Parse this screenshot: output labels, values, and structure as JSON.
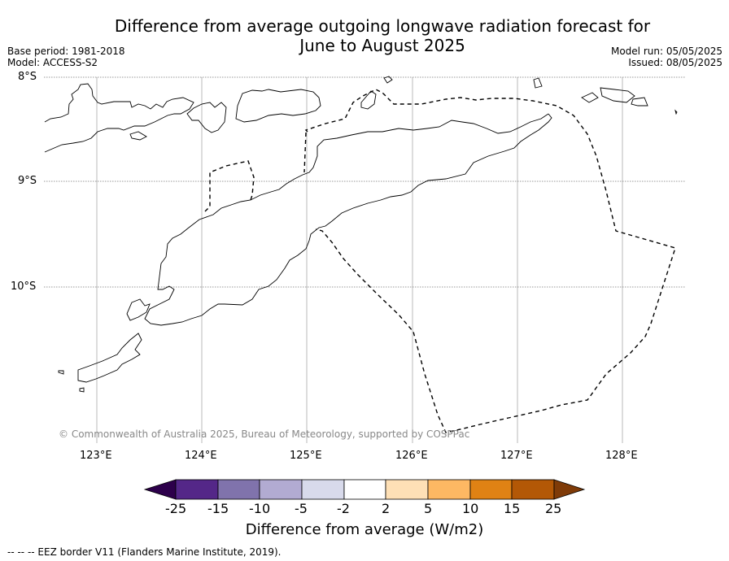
{
  "title_line1": "Difference from average outgoing longwave radiation forecast for",
  "title_line2": "June to August 2025",
  "meta_left": [
    "Base period: 1981-2018",
    "Model: ACCESS-S2"
  ],
  "meta_right": [
    "Model run: 05/05/2025",
    "Issued: 08/05/2025"
  ],
  "map": {
    "lat_ticks": [
      "8°S",
      "9°S",
      "10°S"
    ],
    "lon_ticks": [
      "123°E",
      "124°E",
      "125°E",
      "126°E",
      "127°E",
      "128°E"
    ],
    "gridlines": true,
    "copyright": "© Commonwealth of Australia 2025, Bureau of Meteorology, supported by COSPPac"
  },
  "colorbar": {
    "ticks": [
      "-25",
      "-15",
      "-10",
      "-5",
      "-2",
      "2",
      "5",
      "10",
      "15",
      "25"
    ],
    "colors": [
      "#2d004b",
      "#542788",
      "#8073ac",
      "#b2abd2",
      "#d8daeb",
      "#ffffff",
      "#fee0b6",
      "#fdb863",
      "#e08214",
      "#b35806",
      "#7f3b08"
    ],
    "title": "Difference from average (W/m2)"
  },
  "legend_footnote": "--  --  -- EEZ border V11 (Flanders Marine Institute, 2019)."
}
